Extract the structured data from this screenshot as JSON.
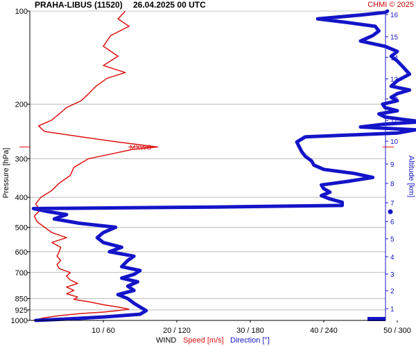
{
  "header": {
    "title": "PRAHA-LIBUS (11520)",
    "datetime": "26.04.2025 00 UTC",
    "credit": "CHMI © 2025"
  },
  "chart_data": {
    "type": "line",
    "left_axis": {
      "label": "Pressure [hPa]",
      "scale": "log",
      "range": [
        1000,
        100
      ],
      "ticks": [
        100,
        200,
        300,
        400,
        500,
        600,
        700,
        850,
        925,
        1000
      ]
    },
    "right_axis": {
      "label": "Altitude [km]",
      "ticks": [
        1,
        2,
        3,
        4,
        5,
        6,
        7,
        8,
        9,
        10,
        11,
        12,
        13,
        14,
        15,
        16
      ]
    },
    "bottom_axis": {
      "label": "WIND",
      "speed_range": [
        0,
        60
      ],
      "direction_range": [
        0,
        360
      ],
      "tick_labels": [
        "10 / 60",
        "20 / 120",
        "30 / 180",
        "40 / 240",
        "50 / 300"
      ]
    },
    "legend": [
      {
        "label": "Speed [m/s]",
        "color": "#dd1111"
      },
      {
        "label": "Direction [°]",
        "color": "#1414c8"
      }
    ],
    "annotation": {
      "label": "MXWS",
      "pressure": 275,
      "speed": 17.4
    },
    "grid": true,
    "series": [
      {
        "name": "Speed [m/s]",
        "color": "#dd1111",
        "unit": "m/s",
        "points": [
          [
            1000,
            0.5
          ],
          [
            980,
            2
          ],
          [
            965,
            4
          ],
          [
            950,
            7
          ],
          [
            940,
            10
          ],
          [
            930,
            12
          ],
          [
            920,
            13.5
          ],
          [
            905,
            12
          ],
          [
            890,
            10
          ],
          [
            870,
            8
          ],
          [
            855,
            6
          ],
          [
            840,
            6.5
          ],
          [
            820,
            5
          ],
          [
            800,
            6
          ],
          [
            780,
            5
          ],
          [
            760,
            6.5
          ],
          [
            740,
            5.5
          ],
          [
            720,
            5
          ],
          [
            700,
            5.5
          ],
          [
            680,
            4
          ],
          [
            660,
            3.7
          ],
          [
            640,
            4.2
          ],
          [
            620,
            3.7
          ],
          [
            600,
            4
          ],
          [
            580,
            4.2
          ],
          [
            560,
            3
          ],
          [
            540,
            5
          ],
          [
            520,
            3
          ],
          [
            500,
            2
          ],
          [
            480,
            1
          ],
          [
            460,
            0.6
          ],
          [
            440,
            1.4
          ],
          [
            420,
            0.8
          ],
          [
            400,
            1.5
          ],
          [
            380,
            3
          ],
          [
            360,
            4
          ],
          [
            340,
            5.5
          ],
          [
            320,
            6
          ],
          [
            300,
            8
          ],
          [
            290,
            11
          ],
          [
            280,
            14
          ],
          [
            275,
            17.4
          ],
          [
            265,
            12
          ],
          [
            255,
            7
          ],
          [
            245,
            2
          ],
          [
            235,
            1.2
          ],
          [
            225,
            3
          ],
          [
            215,
            4
          ],
          [
            205,
            5
          ],
          [
            195,
            7
          ],
          [
            185,
            8
          ],
          [
            175,
            9
          ],
          [
            165,
            10.5
          ],
          [
            158,
            13
          ],
          [
            150,
            10
          ],
          [
            140,
            12
          ],
          [
            130,
            10
          ],
          [
            120,
            11
          ],
          [
            112,
            13.5
          ],
          [
            106,
            12
          ],
          [
            100,
            13
          ]
        ]
      },
      {
        "name": "Direction [°]",
        "color": "#1414c8",
        "unit": "deg",
        "points": [
          [
            1000,
            5
          ],
          [
            990,
            30
          ],
          [
            975,
            60
          ],
          [
            955,
            90
          ],
          [
            930,
            95
          ],
          [
            905,
            90
          ],
          [
            880,
            85
          ],
          [
            850,
            80
          ],
          [
            825,
            72
          ],
          [
            800,
            85
          ],
          [
            775,
            80
          ],
          [
            750,
            88
          ],
          [
            730,
            75
          ],
          [
            710,
            85
          ],
          [
            690,
            90
          ],
          [
            670,
            75
          ],
          [
            640,
            80
          ],
          [
            620,
            85
          ],
          [
            600,
            65
          ],
          [
            580,
            75
          ],
          [
            560,
            60
          ],
          [
            540,
            55
          ],
          [
            520,
            60
          ],
          [
            500,
            70
          ],
          [
            485,
            40
          ],
          [
            470,
            20
          ],
          [
            455,
            30
          ],
          [
            445,
            15
          ],
          [
            435,
            3
          ],
          [
            430,
            150
          ],
          [
            425,
            255
          ],
          [
            415,
            255
          ],
          [
            405,
            245
          ],
          [
            395,
            238
          ],
          [
            385,
            245
          ],
          [
            375,
            240
          ],
          [
            365,
            238
          ],
          [
            355,
            260
          ],
          [
            345,
            280
          ],
          [
            335,
            265
          ],
          [
            325,
            240
          ],
          [
            315,
            232
          ],
          [
            305,
            230
          ],
          [
            295,
            225
          ],
          [
            285,
            222
          ],
          [
            275,
            220
          ],
          [
            265,
            218
          ],
          [
            255,
            225
          ],
          [
            248,
            300
          ],
          [
            242,
            315
          ],
          [
            237,
            270
          ],
          [
            232,
            290
          ],
          [
            228,
            320
          ],
          [
            224,
            305
          ],
          [
            220,
            290
          ],
          [
            215,
            285
          ],
          [
            210,
            300
          ],
          [
            205,
            290
          ],
          [
            200,
            288
          ],
          [
            195,
            300
          ],
          [
            190,
            295
          ],
          [
            185,
            300
          ],
          [
            180,
            310
          ],
          [
            175,
            295
          ],
          [
            168,
            300
          ],
          [
            160,
            310
          ],
          [
            152,
            305
          ],
          [
            145,
            300
          ],
          [
            140,
            295
          ],
          [
            135,
            300
          ],
          [
            130,
            290
          ],
          [
            125,
            270
          ],
          [
            120,
            280
          ],
          [
            116,
            285
          ],
          [
            112,
            282
          ],
          [
            109,
            260
          ],
          [
            106,
            235
          ],
          [
            103,
            270
          ],
          [
            101,
            290
          ],
          [
            100,
            292
          ]
        ]
      }
    ]
  }
}
